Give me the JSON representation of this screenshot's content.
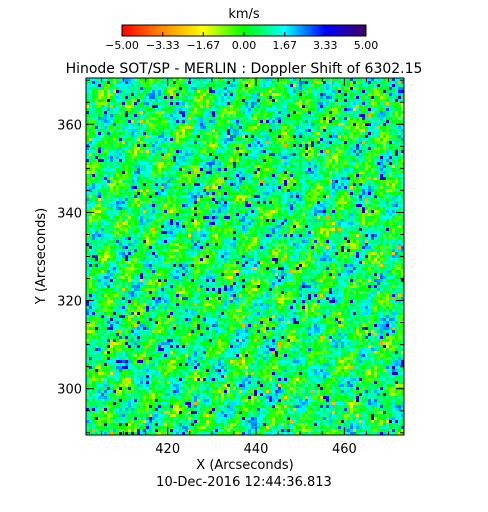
{
  "chart_data": {
    "type": "heatmap",
    "title": "Hinode SOT/SP - MERLIN : Doppler Shift of 6302.15",
    "xlabel": "X (Arcseconds)",
    "ylabel": "Y (Arcseconds)",
    "xlim": [
      401.5,
      473.5
    ],
    "ylim": [
      289.5,
      370.5
    ],
    "x_ticks": [
      420,
      440,
      460
    ],
    "x_tick_labels": [
      "420",
      "440",
      "460"
    ],
    "y_ticks": [
      300,
      320,
      340,
      360
    ],
    "y_tick_labels": [
      "300",
      "320",
      "340",
      "360"
    ],
    "colorbar": {
      "label": "km/s",
      "range": [
        -5.0,
        5.0
      ],
      "ticks": [
        -5.0,
        -3.33,
        -1.67,
        0.0,
        1.67,
        3.33,
        5.0
      ],
      "tick_labels": [
        "−5.00",
        "−3.33",
        "−1.67",
        "0.00",
        "1.67",
        "3.33",
        "5.00"
      ],
      "colors": [
        "#ff0000",
        "#ff8c00",
        "#ffff00",
        "#00ff00",
        "#00ffff",
        "#0000ff",
        "#400060"
      ]
    },
    "timestamp": "10-Dec-2016 12:44:36.813"
  }
}
